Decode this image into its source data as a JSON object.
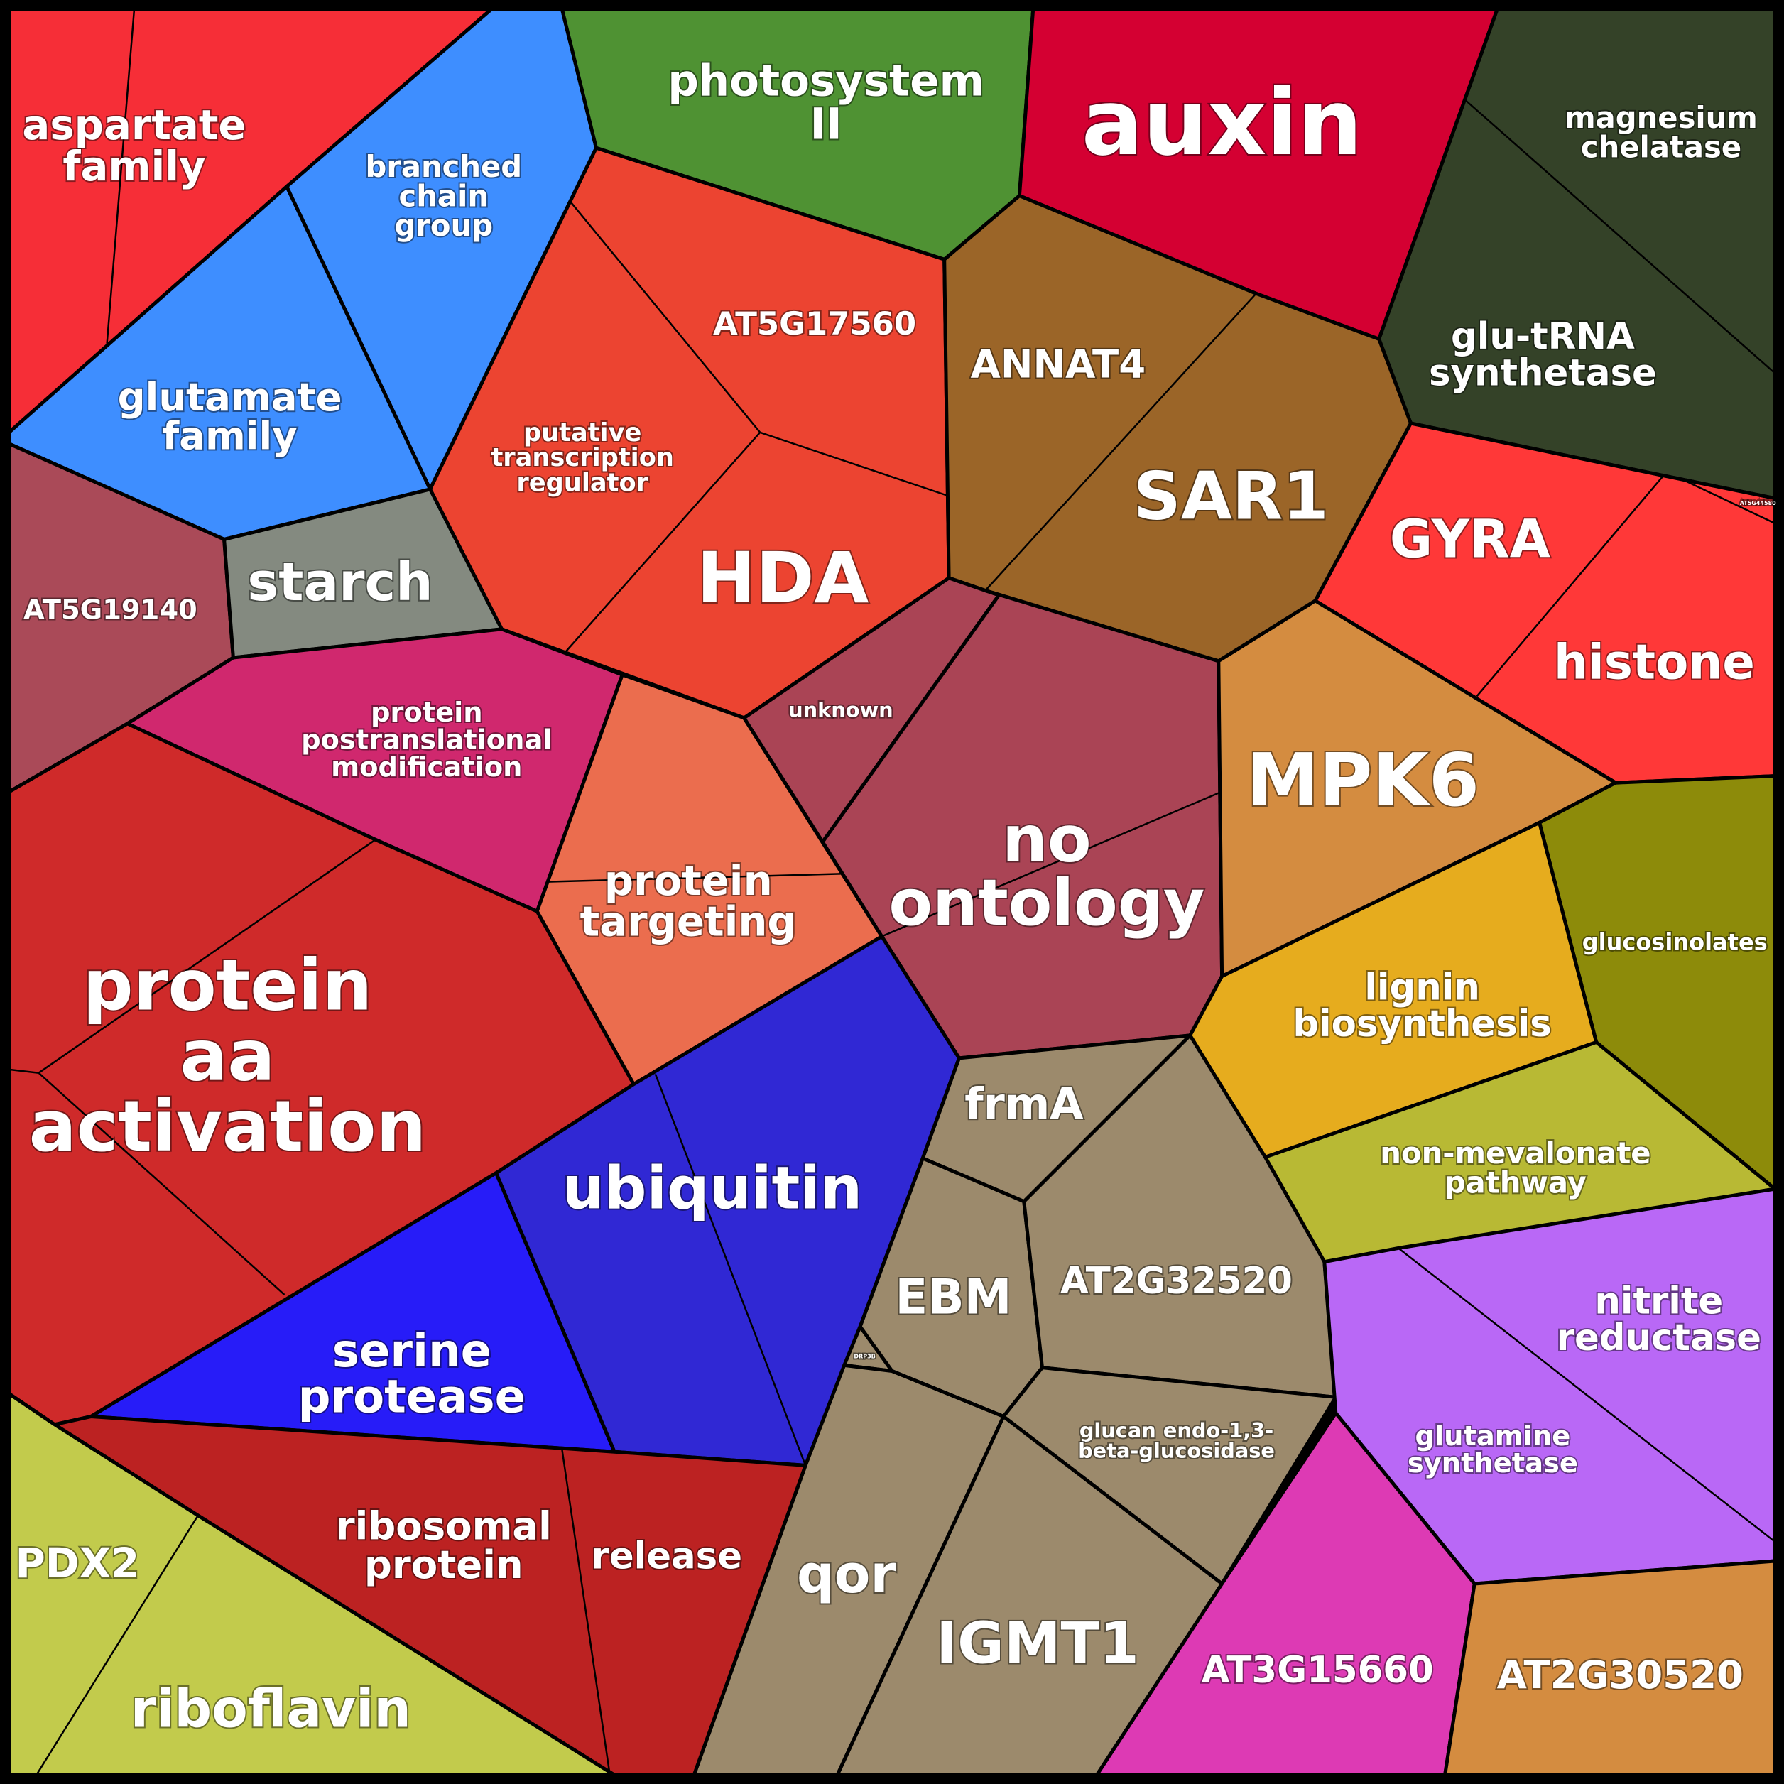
{
  "cells": [
    {
      "id": "aspartate-family",
      "label": [
        "aspartate",
        "family"
      ],
      "color": "#f62e37"
    },
    {
      "id": "branched-chain-group",
      "label": [
        "branched",
        "chain",
        "group"
      ],
      "color": "#3e8eff"
    },
    {
      "id": "glutamate-family",
      "label": [
        "glutamate",
        "family"
      ],
      "color": "#3e8eff"
    },
    {
      "id": "photosystem-ii",
      "label": [
        "photosystem",
        "II"
      ],
      "color": "#4f9233"
    },
    {
      "id": "auxin",
      "label": [
        "auxin"
      ],
      "color": "#d40032"
    },
    {
      "id": "magnesium-chelatase",
      "label": [
        "magnesium",
        "chelatase"
      ],
      "color": "#344228"
    },
    {
      "id": "glu-trna-synthetase",
      "label": [
        "glu-tRNA",
        "synthetase"
      ],
      "color": "#344228"
    },
    {
      "id": "at5g17560",
      "label": [
        "AT5G17560"
      ],
      "color": "#ec4431"
    },
    {
      "id": "putative-transcription-regulator",
      "label": [
        "putative",
        "transcription",
        "regulator"
      ],
      "color": "#ec4431"
    },
    {
      "id": "hda",
      "label": [
        "HDA"
      ],
      "color": "#ec4431"
    },
    {
      "id": "annat4",
      "label": [
        "ANNAT4"
      ],
      "color": "#9b6528"
    },
    {
      "id": "sar1",
      "label": [
        "SAR1"
      ],
      "color": "#9b6528"
    },
    {
      "id": "gyra",
      "label": [
        "GYRA"
      ],
      "color": "#ff3838"
    },
    {
      "id": "histone",
      "label": [
        "histone"
      ],
      "color": "#ff3838"
    },
    {
      "id": "at5g44580",
      "label": [
        "AT5G44580"
      ],
      "color": "#ff3838"
    },
    {
      "id": "at5g19140",
      "label": [
        "AT5G19140"
      ],
      "color": "#aa4a58"
    },
    {
      "id": "starch",
      "label": [
        "starch"
      ],
      "color": "#848a80"
    },
    {
      "id": "protein-postranslational-modification",
      "label": [
        "protein",
        "postranslational",
        "modification"
      ],
      "color": "#d0286e"
    },
    {
      "id": "protein-targeting",
      "label": [
        "protein",
        "targeting"
      ],
      "color": "#eb6d4e"
    },
    {
      "id": "unknown",
      "label": [
        "unknown"
      ],
      "color": "#aa4455"
    },
    {
      "id": "no-ontology",
      "label": [
        "no",
        "ontology"
      ],
      "color": "#aa4455"
    },
    {
      "id": "mpk6",
      "label": [
        "MPK6"
      ],
      "color": "#d48c40"
    },
    {
      "id": "glucosinolates",
      "label": [
        "glucosinolates"
      ],
      "color": "#8d8b0a"
    },
    {
      "id": "lignin-biosynthesis",
      "label": [
        "lignin",
        "biosynthesis"
      ],
      "color": "#e6ac1e"
    },
    {
      "id": "non-mevalonate-pathway",
      "label": [
        "non-mevalonate",
        "pathway"
      ],
      "color": "#b8b934"
    },
    {
      "id": "protein-aa-activation",
      "label": [
        "protein",
        "aa",
        "activation"
      ],
      "color": "#cf2a2a"
    },
    {
      "id": "ubiquitin",
      "label": [
        "ubiquitin"
      ],
      "color": "#3028d4"
    },
    {
      "id": "serine-protease",
      "label": [
        "serine",
        "protease"
      ],
      "color": "#271cf8"
    },
    {
      "id": "frma",
      "label": [
        "frmA"
      ],
      "color": "#9c8a6c"
    },
    {
      "id": "ebm",
      "label": [
        "EBM"
      ],
      "color": "#9c8a6c"
    },
    {
      "id": "at2g32520",
      "label": [
        "AT2G32520"
      ],
      "color": "#9c8a6c"
    },
    {
      "id": "drp3b",
      "label": [
        "DRP3B"
      ],
      "color": "#9c8a6c"
    },
    {
      "id": "glucan-endo",
      "label": [
        "glucan endo-1,3-",
        "beta-glucosidase"
      ],
      "color": "#9c8a6c"
    },
    {
      "id": "qor",
      "label": [
        "qor"
      ],
      "color": "#9c8a6c"
    },
    {
      "id": "igmt1",
      "label": [
        "IGMT1"
      ],
      "color": "#9c8a6c"
    },
    {
      "id": "nitrite-reductase",
      "label": [
        "nitrite",
        "reductase"
      ],
      "color": "#b968f6"
    },
    {
      "id": "glutamine-synthetase",
      "label": [
        "glutamine",
        "synthetase"
      ],
      "color": "#a85ce4"
    },
    {
      "id": "ribosomal-protein",
      "label": [
        "ribosomal",
        "protein"
      ],
      "color": "#bc2222"
    },
    {
      "id": "release",
      "label": [
        "release"
      ],
      "color": "#bc2222"
    },
    {
      "id": "pdx2",
      "label": [
        "PDX2"
      ],
      "color": "#c2cb4c"
    },
    {
      "id": "riboflavin",
      "label": [
        "riboflavin"
      ],
      "color": "#c2cb4c"
    },
    {
      "id": "at3g15660",
      "label": [
        "AT3G15660"
      ],
      "color": "#dd3ab4"
    },
    {
      "id": "at2g30520",
      "label": [
        "AT2G30520"
      ],
      "color": "#d48c40"
    }
  ]
}
